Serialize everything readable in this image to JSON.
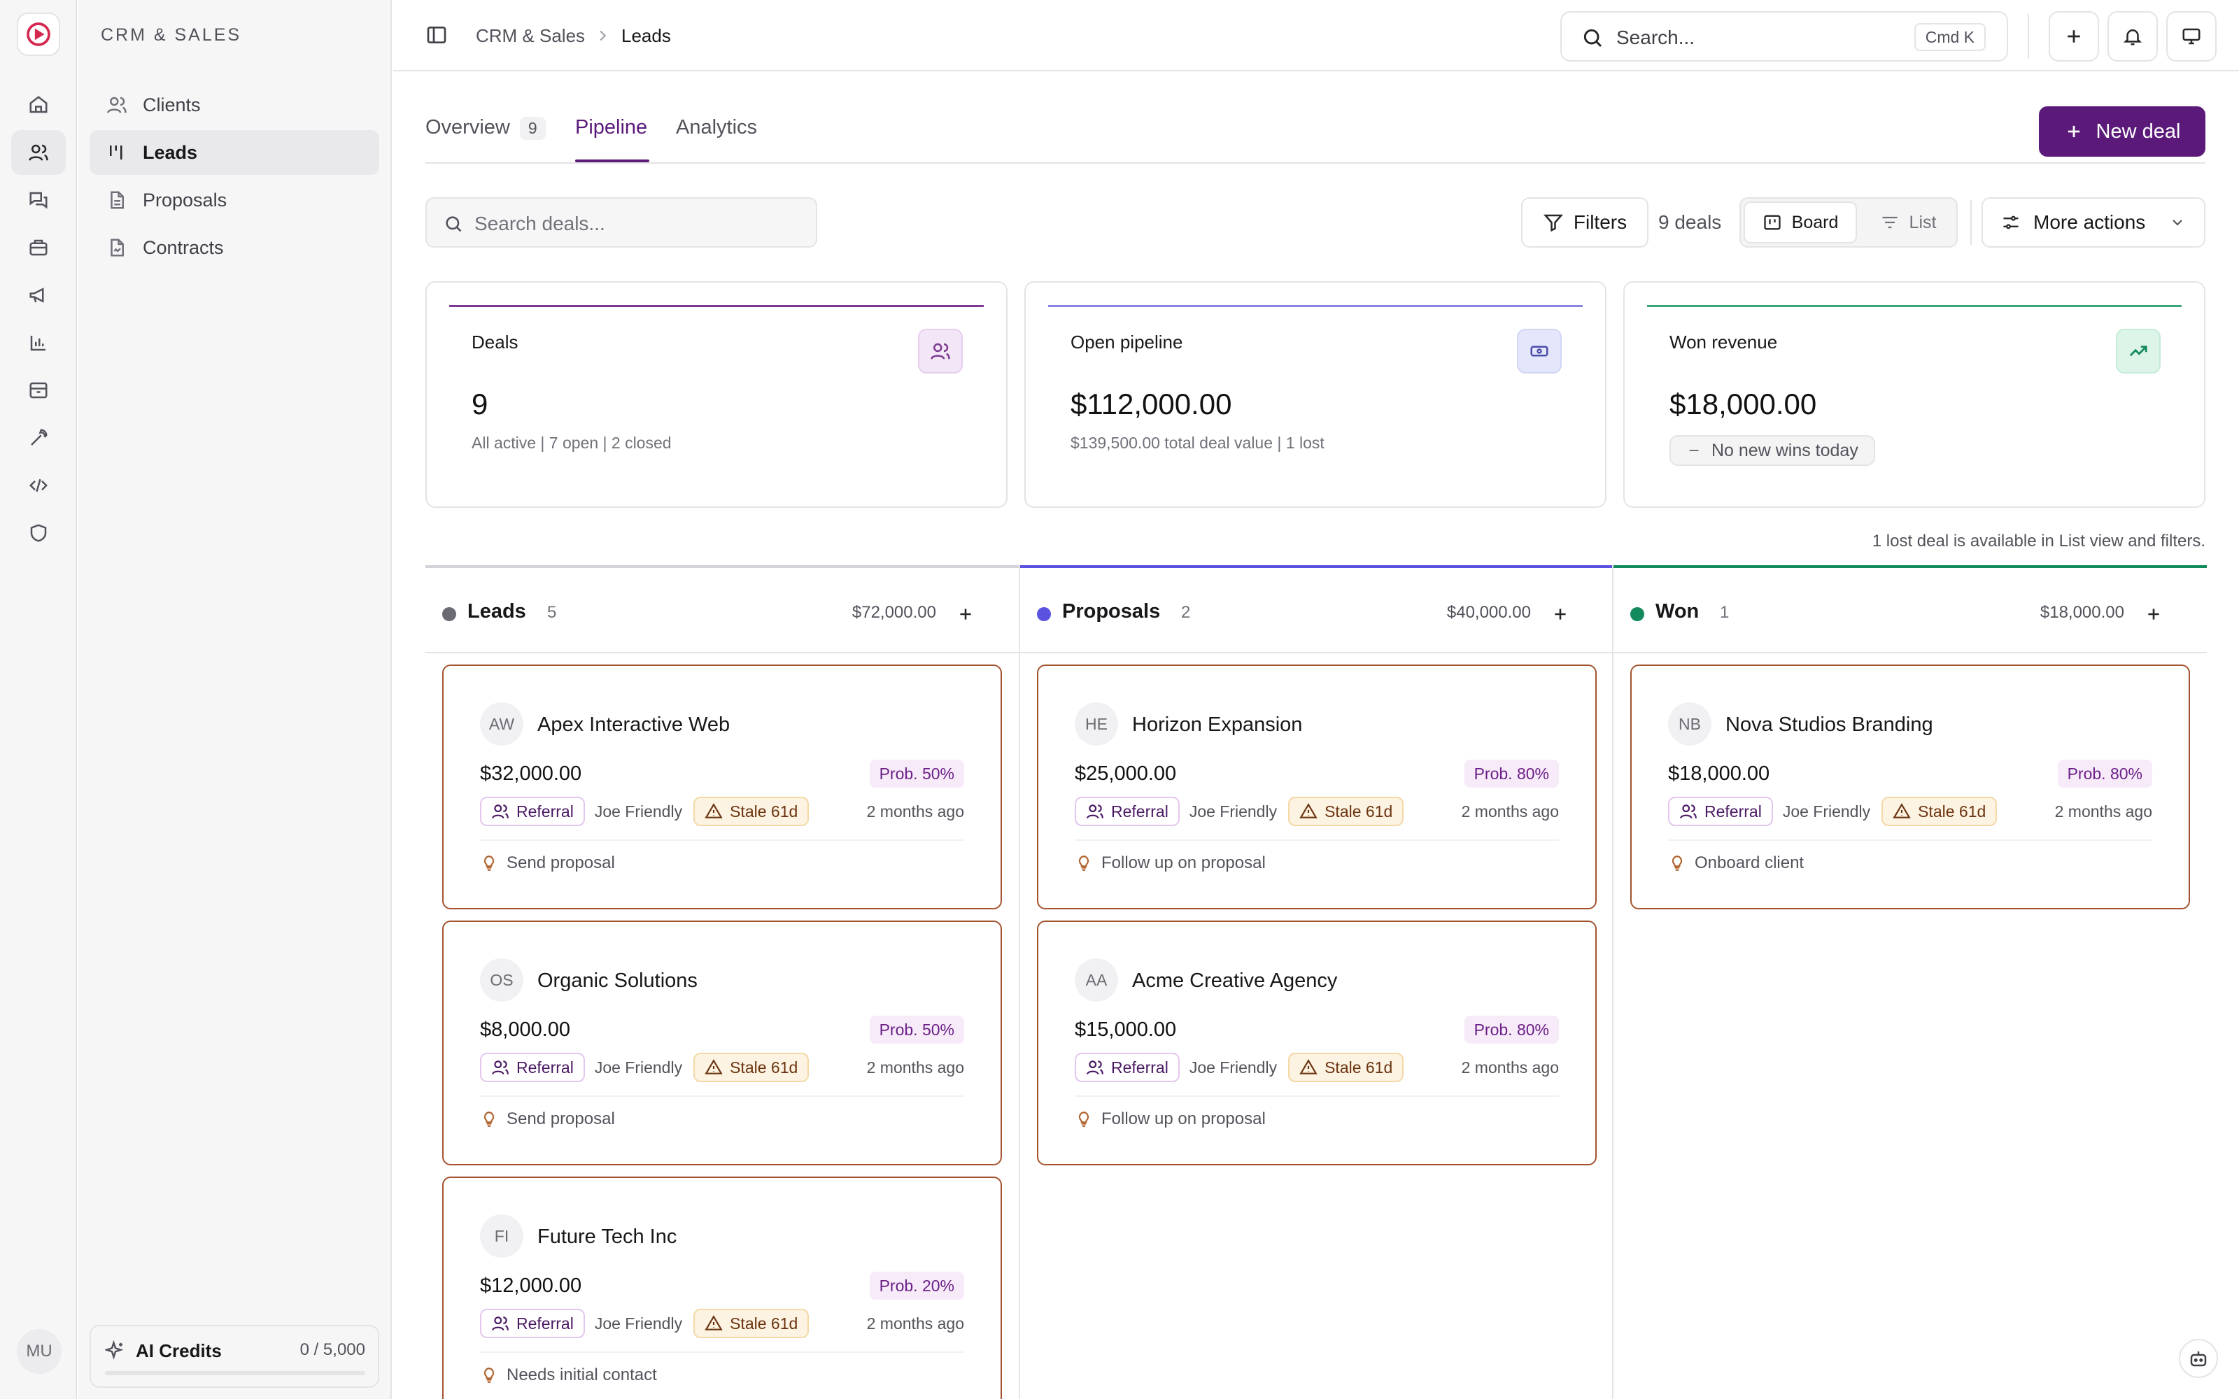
{
  "sidebar": {
    "title": "CRM & SALES",
    "items": [
      {
        "label": "Clients"
      },
      {
        "label": "Leads"
      },
      {
        "label": "Proposals"
      },
      {
        "label": "Contracts"
      }
    ],
    "ai_credits": {
      "label": "AI Credits",
      "value": "0 / 5,000",
      "used_fraction": 0
    }
  },
  "user": {
    "initials": "MU"
  },
  "topbar": {
    "breadcrumb": [
      "CRM & Sales",
      "Leads"
    ],
    "search_placeholder": "Search...",
    "shortcut": "Cmd K"
  },
  "tabs": [
    {
      "label": "Overview",
      "count": "9"
    },
    {
      "label": "Pipeline"
    },
    {
      "label": "Analytics"
    }
  ],
  "actions": {
    "new_deal": "New deal"
  },
  "toolbar": {
    "search_placeholder": "Search deals...",
    "filters": "Filters",
    "deal_count": "9 deals",
    "view_board": "Board",
    "view_list": "List",
    "more_actions": "More actions"
  },
  "stats": [
    {
      "label": "Deals",
      "value": "9",
      "sub": "All active | 7 open | 2 closed",
      "accent": "#7b3a8f"
    },
    {
      "label": "Open pipeline",
      "value": "$112,000.00",
      "sub": "$139,500.00 total deal value | 1 lost",
      "accent": "#8b84e0"
    },
    {
      "label": "Won revenue",
      "value": "$18,000.00",
      "pill": "No new wins today",
      "accent": "#3ba57a"
    }
  ],
  "lost_note": "1 lost deal is available in List view and filters.",
  "columns": [
    {
      "name": "Leads",
      "count": "5",
      "amount": "$72,000.00",
      "color": "#6b6b73",
      "cards": [
        {
          "initials": "AW",
          "title": "Apex Interactive Web",
          "amount": "$32,000.00",
          "prob": "Prob. 50%",
          "source": "Referral",
          "owner": "Joe Friendly",
          "stale": "Stale 61d",
          "ago": "2 months ago",
          "next": "Send proposal"
        },
        {
          "initials": "OS",
          "title": "Organic Solutions",
          "amount": "$8,000.00",
          "prob": "Prob. 50%",
          "source": "Referral",
          "owner": "Joe Friendly",
          "stale": "Stale 61d",
          "ago": "2 months ago",
          "next": "Send proposal"
        },
        {
          "initials": "FI",
          "title": "Future Tech Inc",
          "amount": "$12,000.00",
          "prob": "Prob. 20%",
          "source": "Referral",
          "owner": "Joe Friendly",
          "stale": "Stale 61d",
          "ago": "2 months ago",
          "next": "Needs initial contact"
        }
      ]
    },
    {
      "name": "Proposals",
      "count": "2",
      "amount": "$40,000.00",
      "color": "#5b52e0",
      "cards": [
        {
          "initials": "HE",
          "title": "Horizon Expansion",
          "amount": "$25,000.00",
          "prob": "Prob. 80%",
          "source": "Referral",
          "owner": "Joe Friendly",
          "stale": "Stale 61d",
          "ago": "2 months ago",
          "next": "Follow up on proposal"
        },
        {
          "initials": "AA",
          "title": "Acme Creative Agency",
          "amount": "$15,000.00",
          "prob": "Prob. 80%",
          "source": "Referral",
          "owner": "Joe Friendly",
          "stale": "Stale 61d",
          "ago": "2 months ago",
          "next": "Follow up on proposal"
        }
      ]
    },
    {
      "name": "Won",
      "count": "1",
      "amount": "$18,000.00",
      "color": "#138a5e",
      "cards": [
        {
          "initials": "NB",
          "title": "Nova Studios Branding",
          "amount": "$18,000.00",
          "prob": "Prob. 80%",
          "source": "Referral",
          "owner": "Joe Friendly",
          "stale": "Stale 61d",
          "ago": "2 months ago",
          "next": "Onboard client"
        }
      ]
    }
  ],
  "colors": {
    "brand": "#5b1a7a",
    "card_border": "#a3532f"
  }
}
